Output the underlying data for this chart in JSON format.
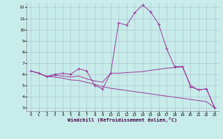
{
  "xlabel": "Windchill (Refroidissement éolien,°C)",
  "background_color": "#c8ecea",
  "line_color": "#993399",
  "grid_color": "#aabbcc",
  "x_values": [
    0,
    1,
    2,
    3,
    4,
    5,
    6,
    7,
    8,
    9,
    10,
    11,
    12,
    13,
    14,
    15,
    16,
    17,
    18,
    19,
    20,
    21,
    22,
    23
  ],
  "series1": [
    6.3,
    6.1,
    5.8,
    6.0,
    6.1,
    6.0,
    6.5,
    6.3,
    5.0,
    4.7,
    6.1,
    10.6,
    10.4,
    11.5,
    12.2,
    11.6,
    10.5,
    8.3,
    6.7,
    6.7,
    4.9,
    4.6,
    4.7,
    3.0
  ],
  "series2": [
    6.3,
    6.1,
    5.8,
    5.9,
    5.85,
    5.75,
    5.85,
    5.6,
    5.4,
    5.3,
    6.1,
    6.1,
    6.15,
    6.2,
    6.25,
    6.35,
    6.45,
    6.55,
    6.6,
    6.65,
    5.0,
    4.6,
    4.7,
    3.0
  ],
  "series3": [
    6.3,
    6.1,
    5.8,
    5.75,
    5.65,
    5.5,
    5.45,
    5.28,
    5.1,
    4.9,
    4.75,
    4.65,
    4.55,
    4.45,
    4.35,
    4.25,
    4.15,
    4.05,
    3.95,
    3.85,
    3.75,
    3.65,
    3.55,
    3.0
  ],
  "ylim_min": 2.7,
  "ylim_max": 12.4,
  "xlim_min": -0.5,
  "xlim_max": 23.5,
  "yticks": [
    3,
    4,
    5,
    6,
    7,
    8,
    9,
    10,
    11,
    12
  ],
  "xticks": [
    0,
    1,
    2,
    3,
    4,
    5,
    6,
    7,
    8,
    9,
    10,
    11,
    12,
    13,
    14,
    15,
    16,
    17,
    18,
    19,
    20,
    21,
    22,
    23
  ]
}
